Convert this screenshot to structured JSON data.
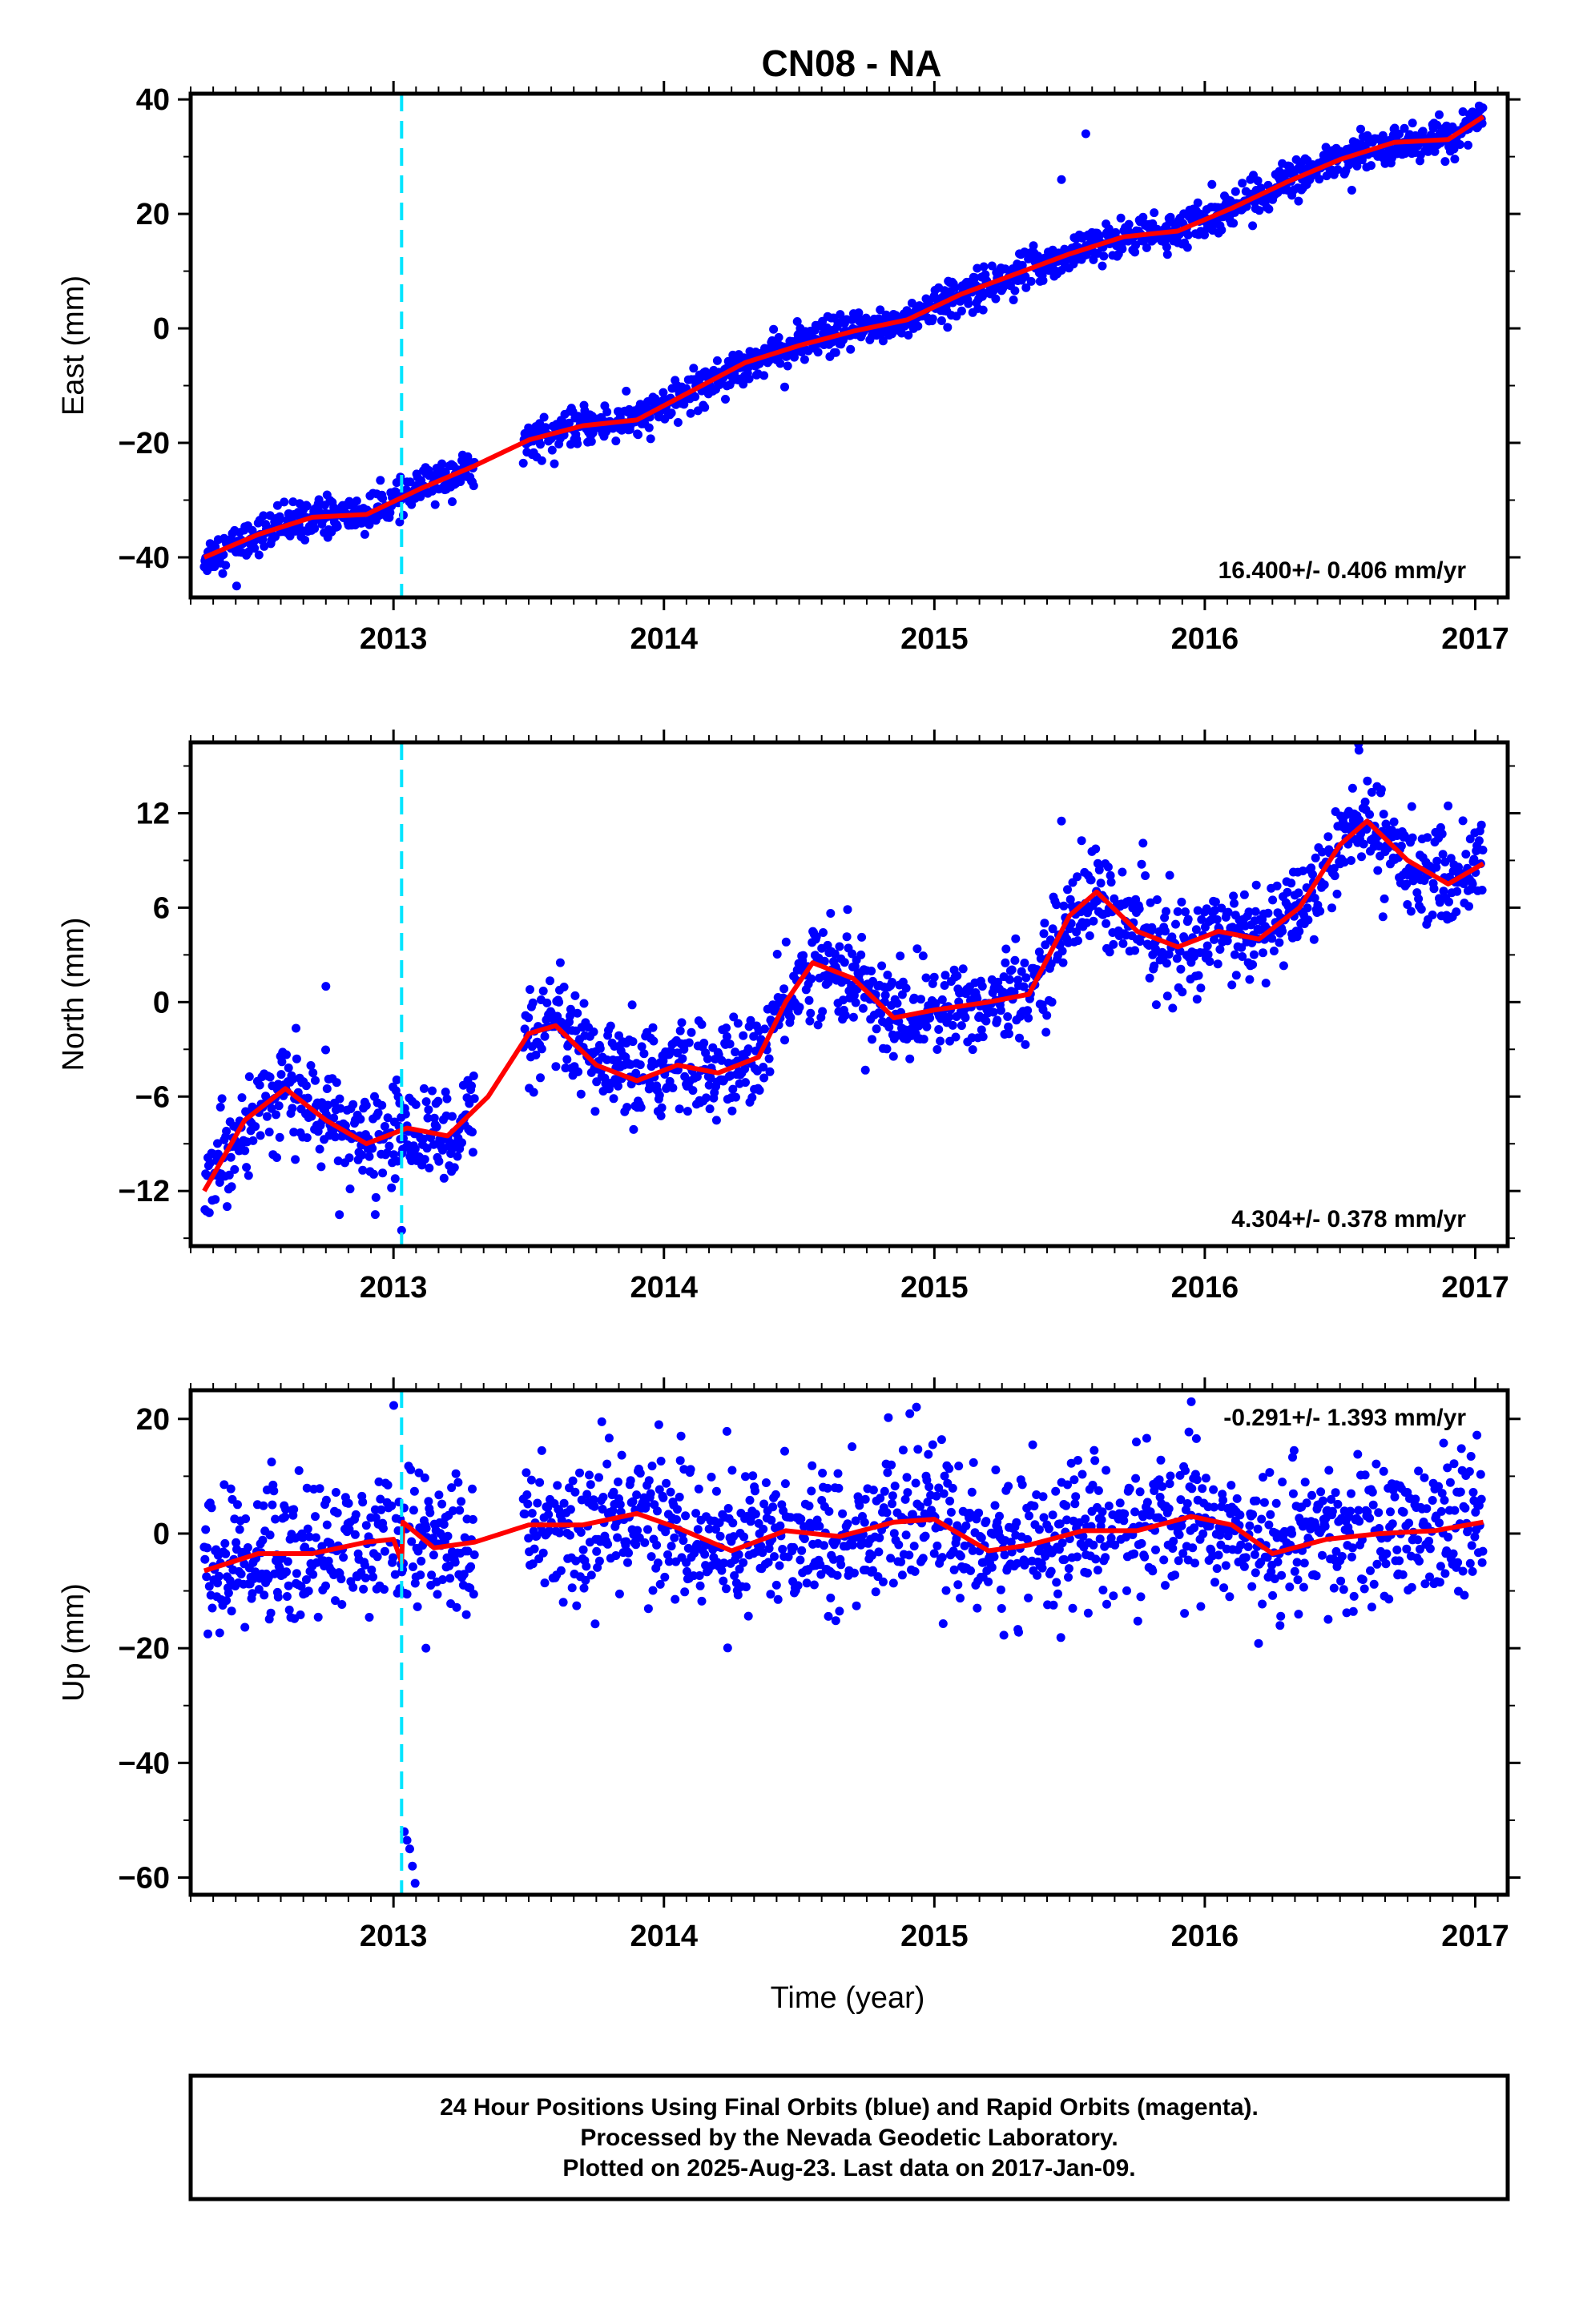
{
  "title": "CN08 - NA",
  "xlabel": "Time (year)",
  "footer": {
    "line1": "24 Hour Positions Using Final Orbits (blue) and Rapid Orbits (magenta).",
    "line2": "Processed by the Nevada Geodetic Laboratory.",
    "line3": "Plotted on 2025-Aug-23. Last data on 2017-Jan-09."
  },
  "colors": {
    "points": "#0000ff",
    "trend": "#ff0000",
    "event_line": "#00e5ff"
  },
  "chart_data": [
    {
      "type": "scatter",
      "ylabel": "East (mm)",
      "xlim": [
        2012.25,
        2017.12
      ],
      "ylim": [
        -47,
        41
      ],
      "yticks": [
        -40,
        -20,
        0,
        20,
        40
      ],
      "xticks": [
        2013,
        2014,
        2015,
        2016,
        2017
      ],
      "event_line_x": 2013.03,
      "rate_text": "16.400+/- 0.406 mm/yr",
      "rate_position": "bottom-right",
      "data_span": [
        2012.3,
        2017.03
      ],
      "gap": [
        2013.3,
        2013.48
      ],
      "trend": {
        "x": [
          2012.3,
          2012.5,
          2012.7,
          2012.9,
          2013.1,
          2013.3,
          2013.5,
          2013.7,
          2013.9,
          2014.1,
          2014.3,
          2014.5,
          2014.7,
          2014.9,
          2015.1,
          2015.3,
          2015.5,
          2015.7,
          2015.9,
          2016.1,
          2016.3,
          2016.5,
          2016.7,
          2016.9,
          2017.03
        ],
        "y": [
          -40,
          -36,
          -33,
          -32.5,
          -28,
          -24,
          -19.5,
          -17,
          -16,
          -11,
          -6,
          -3,
          -0.5,
          1.5,
          6,
          9.5,
          13,
          16,
          17,
          21,
          25.5,
          29.5,
          32.5,
          33,
          37
        ]
      },
      "scatter_sd": 1.6,
      "outliers": [
        {
          "x": 2015.56,
          "y": 34
        },
        {
          "x": 2015.47,
          "y": 26
        },
        {
          "x": 2012.42,
          "y": -45
        }
      ]
    },
    {
      "type": "scatter",
      "ylabel": "North (mm)",
      "xlim": [
        2012.25,
        2017.12
      ],
      "ylim": [
        -15.5,
        16.5
      ],
      "yticks": [
        -12,
        -6,
        0,
        6,
        12
      ],
      "xticks": [
        2013,
        2014,
        2015,
        2016,
        2017
      ],
      "event_line_x": 2013.03,
      "rate_text": "4.304+/- 0.378 mm/yr",
      "rate_position": "bottom-right",
      "data_span": [
        2012.3,
        2017.03
      ],
      "gap": [
        2013.3,
        2013.48
      ],
      "trend": {
        "x": [
          2012.3,
          2012.45,
          2012.6,
          2012.75,
          2012.9,
          2013.05,
          2013.2,
          2013.35,
          2013.5,
          2013.6,
          2013.75,
          2013.9,
          2014.05,
          2014.2,
          2014.35,
          2014.45,
          2014.55,
          2014.7,
          2014.85,
          2015.0,
          2015.2,
          2015.35,
          2015.5,
          2015.6,
          2015.75,
          2015.9,
          2016.05,
          2016.2,
          2016.35,
          2016.5,
          2016.6,
          2016.75,
          2016.9,
          2017.03
        ],
        "y": [
          -12,
          -7.5,
          -5.5,
          -7.5,
          -9,
          -8,
          -8.5,
          -6,
          -2,
          -1.5,
          -4,
          -5,
          -4,
          -4.5,
          -3.5,
          0,
          2.5,
          1.5,
          -1,
          -0.5,
          0,
          0.5,
          5.5,
          7,
          4.5,
          3.5,
          4.5,
          4,
          6,
          10,
          11.5,
          9,
          7.5,
          8.8
        ]
      },
      "scatter_sd": 1.5,
      "outliers": [
        {
          "x": 2012.75,
          "y": 1
        },
        {
          "x": 2012.8,
          "y": -13.5
        },
        {
          "x": 2013.03,
          "y": -14.5
        },
        {
          "x": 2015.47,
          "y": 11.5
        },
        {
          "x": 2016.57,
          "y": 16
        }
      ]
    },
    {
      "type": "scatter",
      "ylabel": "Up (mm)",
      "xlim": [
        2012.25,
        2017.12
      ],
      "ylim": [
        -63,
        25
      ],
      "yticks": [
        -60,
        -40,
        -20,
        0,
        20
      ],
      "xticks": [
        2013,
        2014,
        2015,
        2016,
        2017
      ],
      "event_line_x": 2013.03,
      "rate_text": "-0.291+/- 1.393 mm/yr",
      "rate_position": "top-right",
      "data_span": [
        2012.3,
        2017.03
      ],
      "gap": [
        2013.3,
        2013.48
      ],
      "trend": {
        "x": [
          2012.3,
          2012.5,
          2012.7,
          2012.9,
          2013.0,
          2013.03,
          2013.035,
          2013.15,
          2013.3,
          2013.5,
          2013.7,
          2013.9,
          2014.05,
          2014.25,
          2014.45,
          2014.65,
          2014.85,
          2015.0,
          2015.2,
          2015.35,
          2015.55,
          2015.75,
          2015.95,
          2016.1,
          2016.25,
          2016.45,
          2016.65,
          2016.85,
          2017.03
        ],
        "y": [
          -6.5,
          -3.5,
          -3.5,
          -1.5,
          -1,
          -5,
          2,
          -2.5,
          -1.5,
          1.5,
          1.5,
          3.5,
          1,
          -3,
          0.5,
          -0.5,
          2,
          2.5,
          -3,
          -2,
          0.5,
          0.5,
          3,
          1.5,
          -3.5,
          -1,
          0,
          0.5,
          2
        ]
      },
      "scatter_sd": 6.2,
      "outliers": [
        {
          "x": 2013.04,
          "y": -52
        },
        {
          "x": 2013.05,
          "y": -53.5
        },
        {
          "x": 2013.06,
          "y": -55
        },
        {
          "x": 2013.07,
          "y": -58
        },
        {
          "x": 2013.08,
          "y": -61
        },
        {
          "x": 2015.95,
          "y": 23
        },
        {
          "x": 2013.12,
          "y": -20
        }
      ]
    }
  ]
}
